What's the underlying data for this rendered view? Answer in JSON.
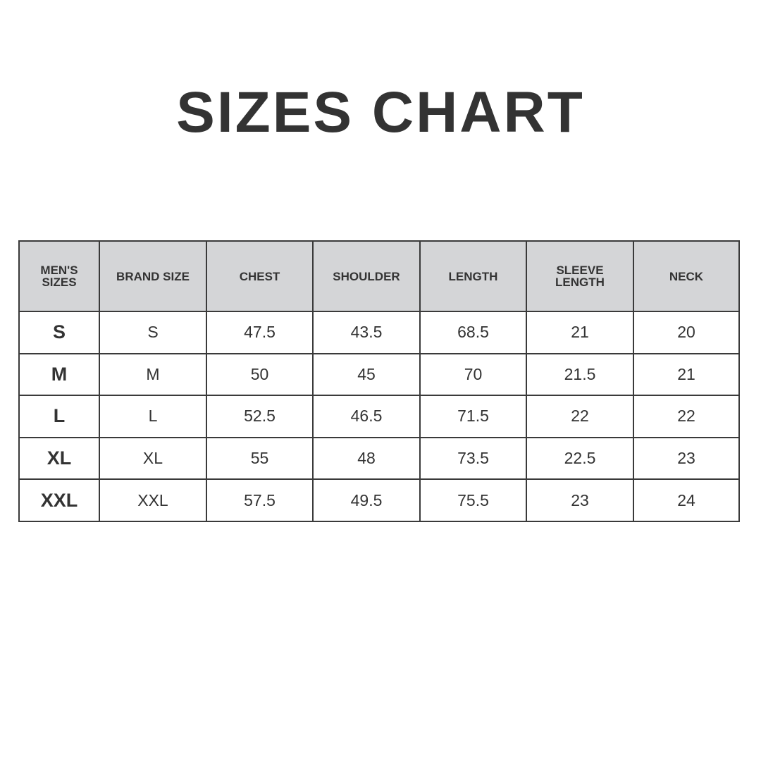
{
  "title": "SIZES CHART",
  "table": {
    "headers": [
      [
        "MEN'S",
        "SIZES"
      ],
      [
        "BRAND SIZE"
      ],
      [
        "CHEST"
      ],
      [
        "SHOULDER"
      ],
      [
        "LENGTH"
      ],
      [
        "SLEEVE",
        "LENGTH"
      ],
      [
        "NECK"
      ]
    ],
    "rows": [
      [
        "S",
        "S",
        "47.5",
        "43.5",
        "68.5",
        "21",
        "20"
      ],
      [
        "M",
        "M",
        "50",
        "45",
        "70",
        "21.5",
        "21"
      ],
      [
        "L",
        "L",
        "52.5",
        "46.5",
        "71.5",
        "22",
        "22"
      ],
      [
        "XL",
        "XL",
        "55",
        "48",
        "73.5",
        "22.5",
        "23"
      ],
      [
        "XXL",
        "XXL",
        "57.5",
        "49.5",
        "75.5",
        "23",
        "24"
      ]
    ]
  },
  "colors": {
    "header_bg": "#d4d5d7",
    "text": "#333333",
    "border": "#3a3a3a"
  }
}
